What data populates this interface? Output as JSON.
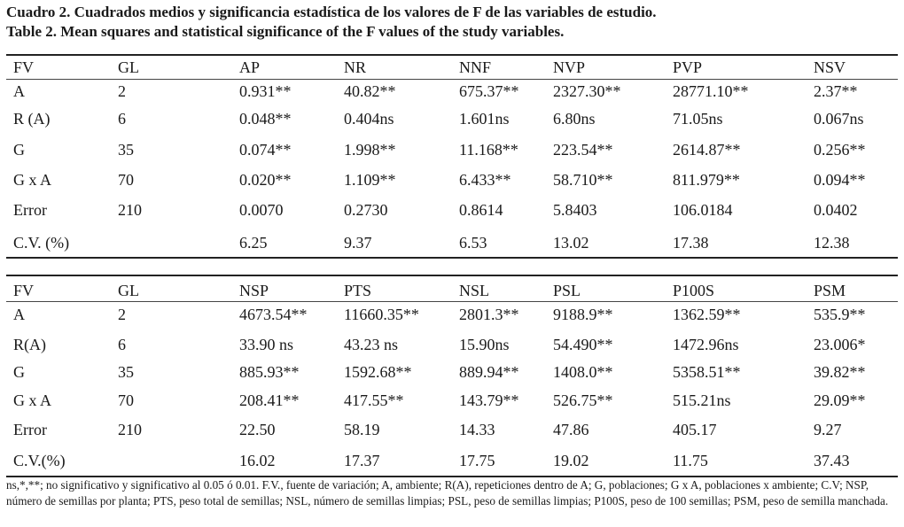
{
  "titles": {
    "spanish": "Cuadro 2. Cuadrados medios y significancia estadística de los valores de F de las variables de estudio.",
    "english": "Table 2. Mean squares and statistical significance of the F values of the study variables."
  },
  "table1": {
    "headers": [
      "FV",
      "GL",
      "AP",
      "NR",
      "NNF",
      "NVP",
      "PVP",
      "NSV"
    ],
    "rows": [
      [
        "A",
        "2",
        "0.931**",
        "40.82**",
        "675.37**",
        "2327.30**",
        "28771.10**",
        "2.37**"
      ],
      [
        "R (A)",
        "6",
        "0.048**",
        "0.404ns",
        "1.601ns",
        "6.80ns",
        "71.05ns",
        "0.067ns"
      ],
      [
        "G",
        "35",
        "0.074**",
        "1.998**",
        "11.168**",
        "223.54**",
        "2614.87**",
        "0.256**"
      ],
      [
        "G x A",
        "70",
        "0.020**",
        "1.109**",
        "6.433**",
        "58.710**",
        "811.979**",
        "0.094**"
      ],
      [
        "Error",
        "210",
        "0.0070",
        "0.2730",
        "0.8614",
        "5.8403",
        "106.0184",
        "0.0402"
      ],
      [
        "C.V. (%)",
        "",
        "6.25",
        "9.37",
        "6.53",
        "13.02",
        "17.38",
        "12.38"
      ]
    ]
  },
  "table2": {
    "headers": [
      "FV",
      "GL",
      "NSP",
      "PTS",
      "NSL",
      "PSL",
      "P100S",
      "PSM"
    ],
    "rows": [
      [
        "A",
        "2",
        "4673.54**",
        "11660.35**",
        "2801.3**",
        "9188.9**",
        "1362.59**",
        "535.9**"
      ],
      [
        "R(A)",
        "6",
        "33.90 ns",
        "43.23 ns",
        "15.90ns",
        "54.490**",
        "1472.96ns",
        "23.006*"
      ],
      [
        "G",
        "35",
        "885.93**",
        "1592.68**",
        "889.94**",
        "1408.0**",
        "5358.51**",
        "39.82**"
      ],
      [
        "G x A",
        "70",
        "208.41**",
        "417.55**",
        "143.79**",
        "526.75**",
        "515.21ns",
        "29.09**"
      ],
      [
        "Error",
        "210",
        "22.50",
        "58.19",
        "14.33",
        "47.86",
        "405.17",
        "9.27"
      ],
      [
        "C.V.(%)",
        "",
        "16.02",
        "17.37",
        "17.75",
        "19.02",
        "11.75",
        "37.43"
      ]
    ]
  },
  "footnote": "ns,*,**; no significativo y significativo al 0.05 ó 0.01. F.V., fuente de variación; A, ambiente; R(A), repeticiones dentro de A; G, poblaciones; G x A, poblaciones x ambiente; C.V; NSP, número de semillas por planta; PTS, peso total de semillas; NSL, número de semillas limpias; PSL, peso de semillas limpias; P100S, peso de 100 semillas; PSM, peso de semilla manchada."
}
